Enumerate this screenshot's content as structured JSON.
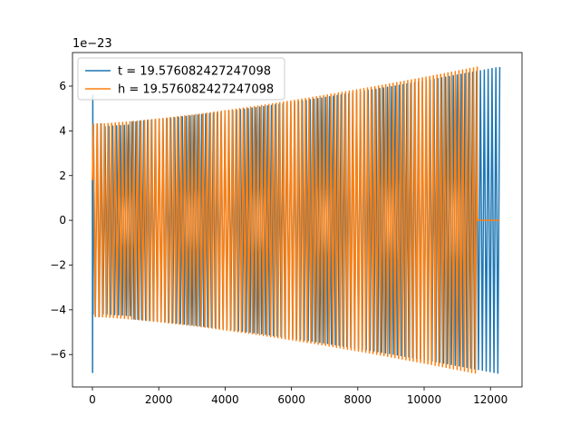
{
  "chart_data": {
    "type": "line",
    "title": "",
    "xlabel": "",
    "ylabel": "",
    "offset_label": "1e−23",
    "xlim": [
      -600,
      12950
    ],
    "ylim": [
      -7.45,
      7.5
    ],
    "xticks": [
      0,
      2000,
      4000,
      6000,
      8000,
      10000,
      12000
    ],
    "xtick_labels": [
      "0",
      "2000",
      "4000",
      "6000",
      "8000",
      "10000",
      "12000"
    ],
    "yticks": [
      -6,
      -4,
      -2,
      0,
      2,
      4,
      6
    ],
    "ytick_labels": [
      "−6",
      "−4",
      "−2",
      "0",
      "2",
      "4",
      "6"
    ],
    "grid": false,
    "legend_position": "upper-left",
    "series": [
      {
        "name": "t = 19.576082427247098",
        "color": "#1f77b4",
        "x_start": 0,
        "x_end": 12280,
        "initial_spike": [
          -6.8,
          5.6
        ],
        "amplitude_start": 4.3,
        "amplitude_end": 6.85,
        "envelope": "growing oscillation"
      },
      {
        "name": "h = 19.576082427247098",
        "color": "#ff7f0e",
        "x_start": 0,
        "x_end": 11600,
        "flat_after": [
          11600,
          12280
        ],
        "amplitude_start": 4.3,
        "amplitude_end": 6.85,
        "envelope": "growing oscillation"
      }
    ]
  }
}
